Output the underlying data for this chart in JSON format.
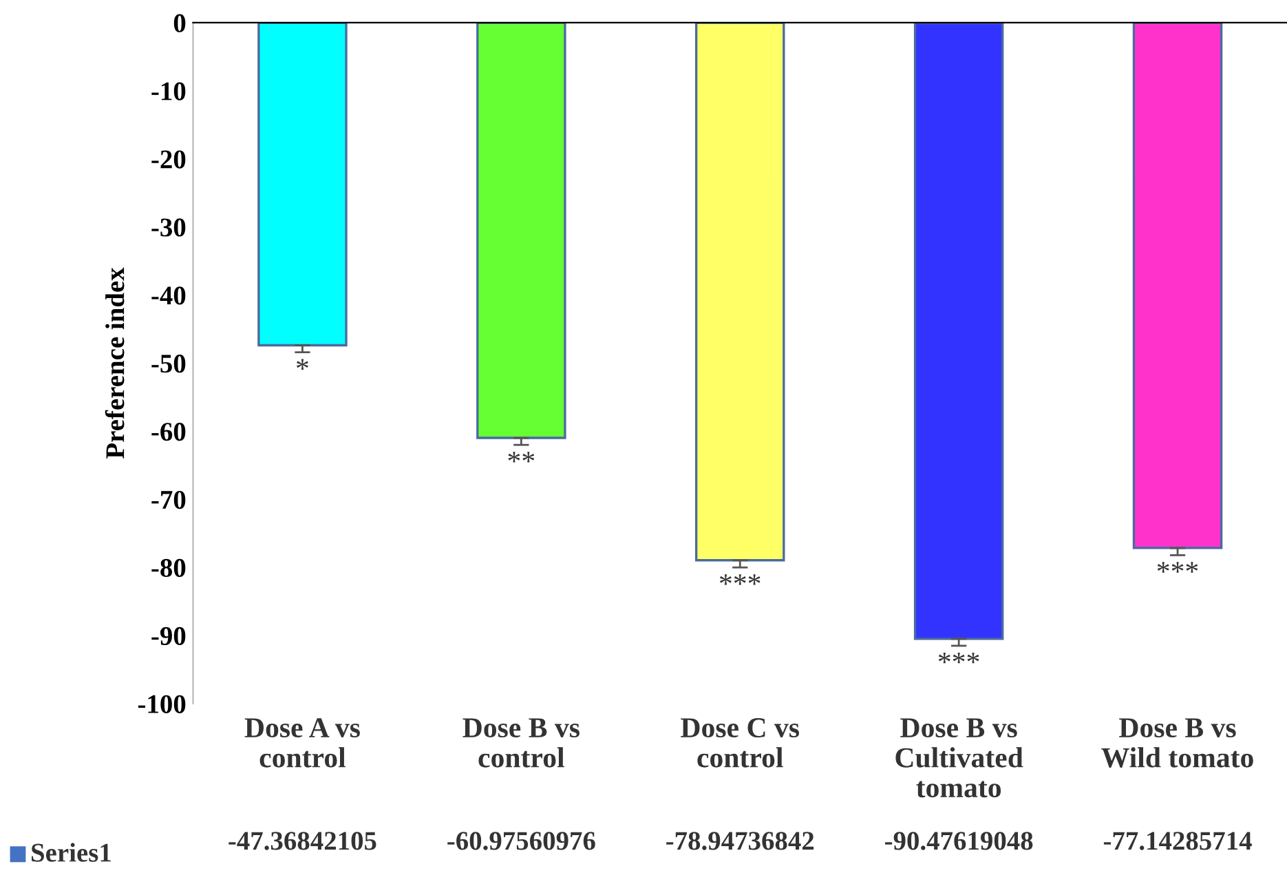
{
  "chart_data": {
    "type": "bar",
    "ylabel": "Preference index",
    "categories": [
      "Dose A vs\ncontrol",
      "Dose B vs\ncontrol",
      "Dose C vs\ncontrol",
      "Dose B vs\nCultivated\ntomato",
      "Dose B vs\nWild tomato"
    ],
    "series": [
      {
        "name": "Series1",
        "color": "#4472c4",
        "colors": [
          "#00ffff",
          "#66ff33",
          "#ffff66",
          "#3333ff",
          "#ff33cc"
        ],
        "values": [
          -47.36842105,
          -60.97560976,
          -78.94736842,
          -90.47619048,
          -77.14285714
        ],
        "errors": [
          [
            -48.4,
            -47.36842105
          ],
          [
            -62.0,
            -60.97560976
          ],
          [
            -80.0,
            -78.94736842
          ],
          [
            -91.5,
            -90.47619048
          ],
          [
            -78.2,
            -77.14285714
          ]
        ]
      }
    ],
    "data_labels": true,
    "annotations": [
      {
        "text": "*",
        "x": "Dose A vs\ncontrol",
        "y": -48.4
      },
      {
        "text": "**",
        "x": "Dose B vs\ncontrol",
        "y": -62.0
      },
      {
        "text": "***",
        "x": "Dose C vs\ncontrol",
        "y": -80.0
      },
      {
        "text": "***",
        "x": "Dose B vs\nCultivated\ntomato",
        "y": -91.5
      },
      {
        "text": "***",
        "x": "Dose B vs\nWild tomato",
        "y": -78.2
      }
    ],
    "ylim": [
      -100,
      0
    ],
    "yticks": [
      0,
      -10,
      -20,
      -30,
      -40,
      -50,
      -60,
      -70,
      -80,
      -90,
      -100
    ],
    "grid": false,
    "legend": false
  }
}
